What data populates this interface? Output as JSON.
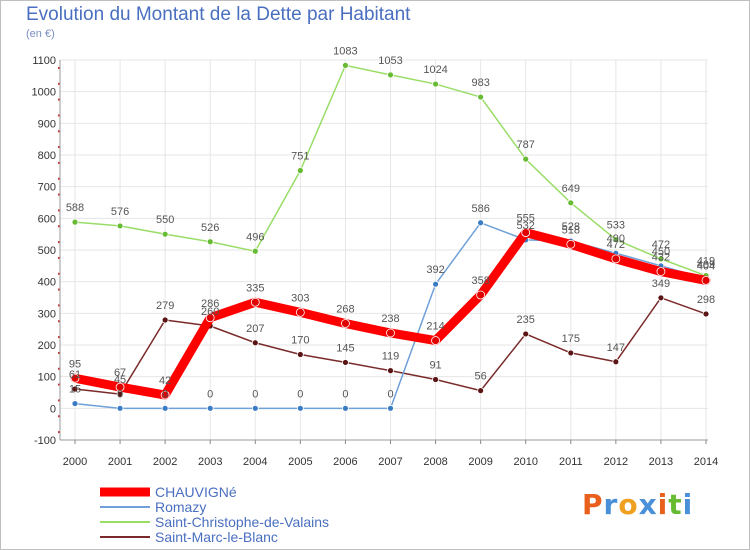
{
  "chart_data": {
    "type": "line",
    "title": "Evolution du Montant de la Dette par Habitant",
    "unit_label": "(en €)",
    "x": [
      "2000",
      "2001",
      "2002",
      "2003",
      "2004",
      "2005",
      "2006",
      "2007",
      "2008",
      "2009",
      "2010",
      "2011",
      "2012",
      "2013",
      "2014"
    ],
    "ylim": [
      -100,
      1100
    ],
    "yticks": [
      -100,
      0,
      100,
      200,
      300,
      400,
      500,
      600,
      700,
      800,
      900,
      1000,
      1100
    ],
    "grid": true,
    "legend_position": "bottom-left",
    "series": [
      {
        "name": "CHAUVIGNé",
        "color": "#ff0000",
        "marker": "#e00000",
        "values": [
          95,
          67,
          42,
          286,
          335,
          303,
          268,
          238,
          214,
          358,
          555,
          518,
          472,
          432,
          404
        ]
      },
      {
        "name": "Romazy",
        "color": "#6fa0d8",
        "marker": "#3a7cc4",
        "values": [
          15,
          0,
          0,
          0,
          0,
          0,
          0,
          0,
          392,
          586,
          532,
          528,
          490,
          450,
          409
        ]
      },
      {
        "name": "Saint-Christophe-de-Valains",
        "color": "#99dd66",
        "marker": "#66bb33",
        "values": [
          588,
          576,
          550,
          526,
          496,
          751,
          1083,
          1053,
          1024,
          983,
          787,
          649,
          533,
          472,
          419
        ]
      },
      {
        "name": "Saint-Marc-le-Blanc",
        "color": "#7a2a2a",
        "marker": "#5a1414",
        "values": [
          61,
          45,
          279,
          260,
          207,
          170,
          145,
          119,
          91,
          56,
          235,
          175,
          147,
          349,
          298
        ]
      }
    ]
  },
  "logo": {
    "text": "Proxiti",
    "colors": [
      "#e8601c",
      "#4a90d9",
      "#f0a020",
      "#4a90d9",
      "#e8601c",
      "#66bb33",
      "#4a90d9"
    ]
  }
}
